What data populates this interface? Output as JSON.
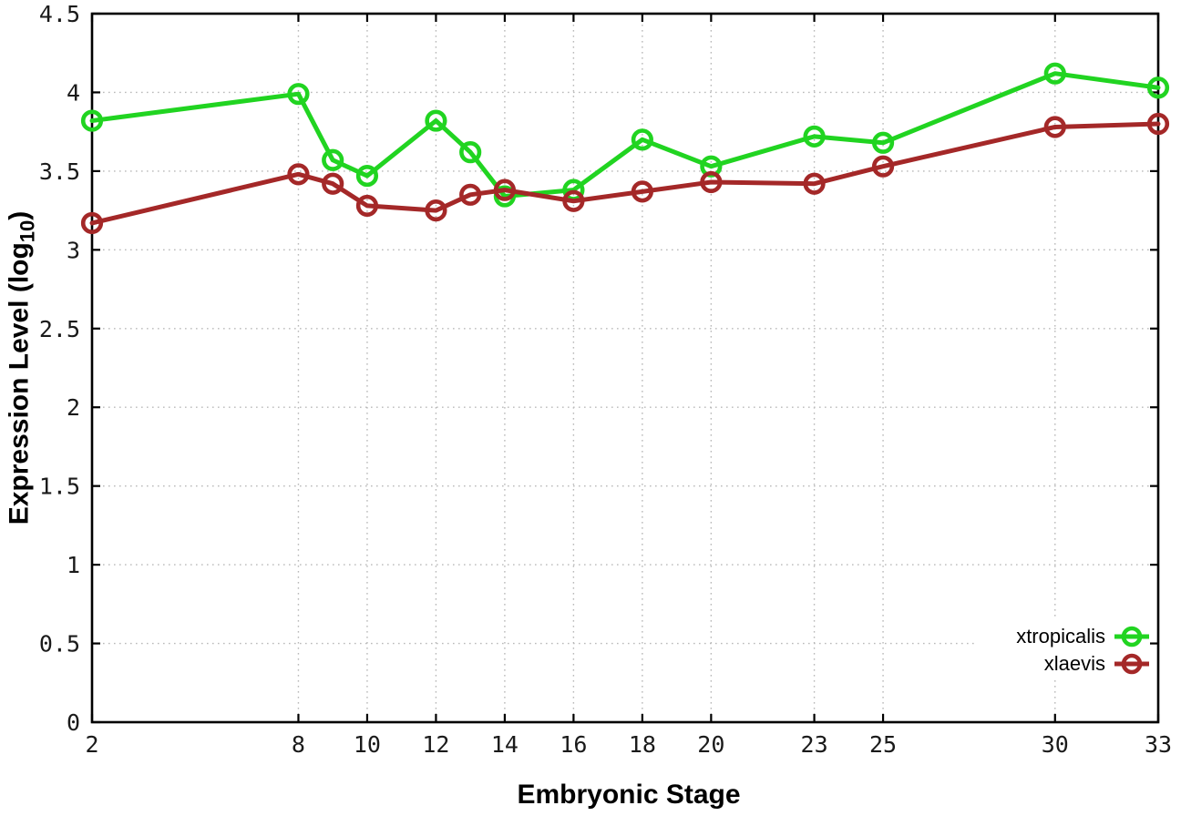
{
  "chart_data": {
    "type": "line",
    "title": "",
    "xlabel": "Embryonic Stage",
    "ylabel": {
      "prefix": "Expression Level (log",
      "sub": "10",
      "suffix": ")"
    },
    "x": [
      2,
      8,
      9,
      10,
      12,
      13,
      14,
      16,
      18,
      20,
      23,
      25,
      30,
      33
    ],
    "series": [
      {
        "name": "xtropicalis",
        "color": "#21d421",
        "marker": "open-circle",
        "values": [
          3.82,
          3.99,
          3.57,
          3.47,
          3.82,
          3.62,
          3.34,
          3.38,
          3.7,
          3.53,
          3.72,
          3.68,
          4.12,
          4.03
        ]
      },
      {
        "name": "xlaevis",
        "color": "#a42828",
        "marker": "open-circle",
        "values": [
          3.17,
          3.48,
          3.42,
          3.28,
          3.25,
          3.35,
          3.38,
          3.31,
          3.37,
          3.43,
          3.42,
          3.53,
          3.78,
          3.8
        ]
      }
    ],
    "xlim": [
      2,
      33
    ],
    "ylim": [
      0,
      4.5
    ],
    "xticks": {
      "values": [
        2,
        8,
        10,
        12,
        14,
        16,
        18,
        20,
        23,
        25,
        30,
        33
      ],
      "labels": [
        "2",
        "8",
        "10",
        "12",
        "14",
        "16",
        "18",
        "20",
        "23",
        "25",
        "30",
        "33"
      ]
    },
    "yticks": {
      "values": [
        0,
        0.5,
        1,
        1.5,
        2,
        2.5,
        3,
        3.5,
        4,
        4.5
      ],
      "labels": [
        "0",
        "0.5",
        "1",
        "1.5",
        "2",
        "2.5",
        "3",
        "3.5",
        "4",
        "4.5"
      ]
    },
    "grid": true,
    "grid_style": "dotted",
    "legend_position": "bottom-right",
    "colors": {
      "background": "#ffffff",
      "border": "#000000",
      "grid": "#b9b9b9",
      "tick_text": "#1a1a1a"
    }
  }
}
